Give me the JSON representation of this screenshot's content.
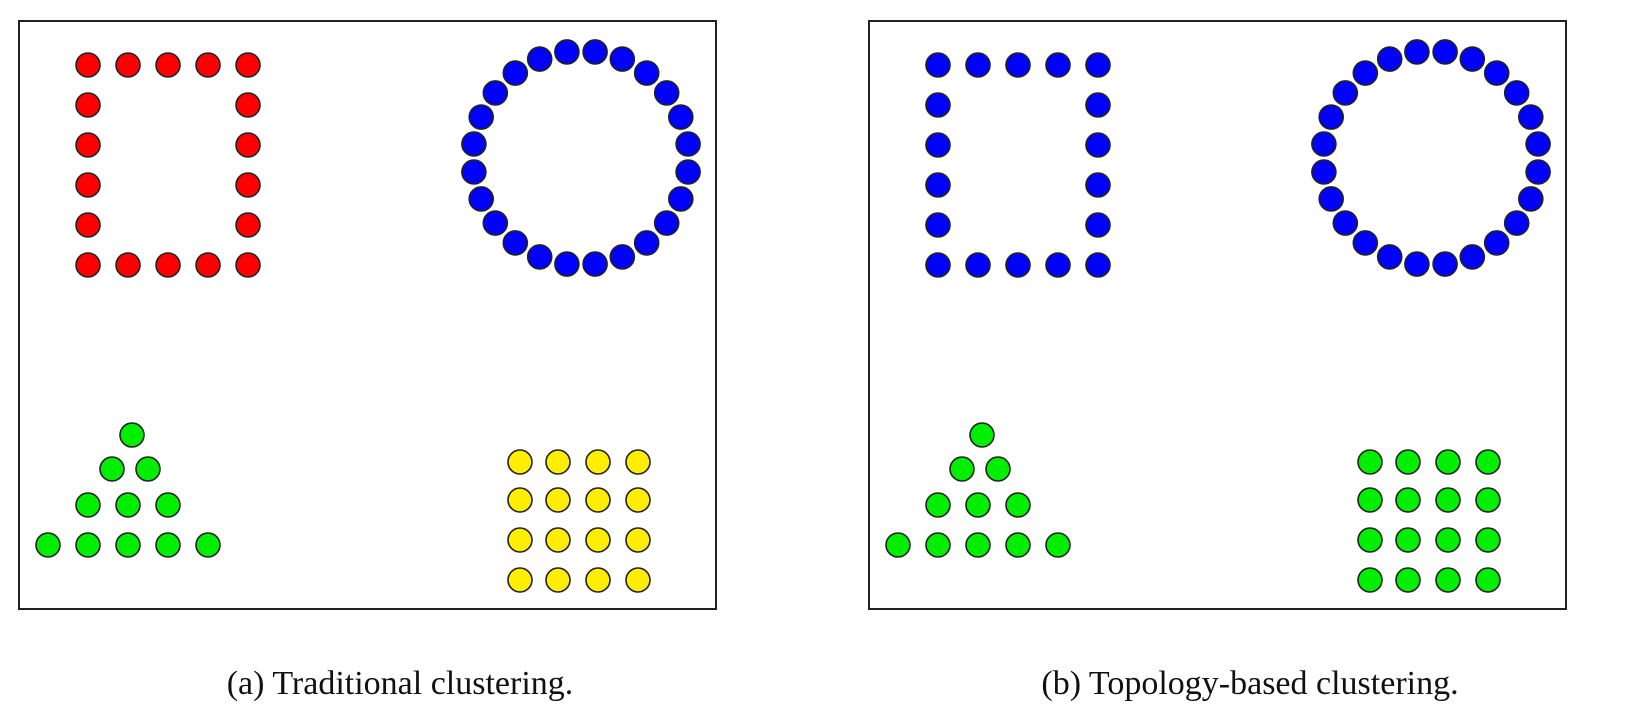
{
  "colors": {
    "red": "#ff0000",
    "blue": "#0000ff",
    "green": "#00ee00",
    "yellow": "#ffee00",
    "outline": "#222222",
    "frame": "#222222"
  },
  "panels": [
    {
      "caption": "(a) Traditional clustering.",
      "clusters": {
        "square": "red",
        "circle": "blue",
        "triangle": "green",
        "grid": "yellow"
      }
    },
    {
      "caption": "(b) Topology-based clustering.",
      "clusters": {
        "square": "blue",
        "circle": "blue",
        "triangle": "green",
        "grid": "green"
      }
    }
  ]
}
